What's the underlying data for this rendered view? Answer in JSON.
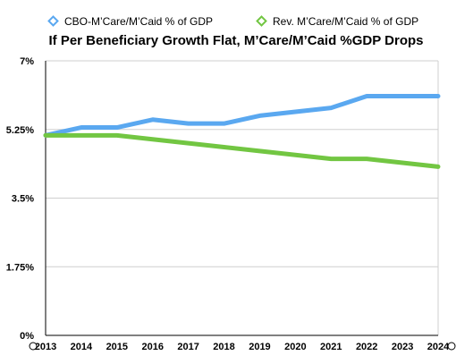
{
  "chart_data": {
    "type": "line",
    "title": "If Per Beneficiary Growth Flat, M’Care/M’Caid %GDP Drops",
    "xlabel": "",
    "ylabel": "",
    "categories": [
      "2013",
      "2014",
      "2015",
      "2016",
      "2017",
      "2018",
      "2019",
      "2020",
      "2021",
      "2022",
      "2023",
      "2024"
    ],
    "ylim": [
      0,
      7
    ],
    "y_ticks": [
      {
        "value": 0,
        "label": "0%"
      },
      {
        "value": 1.75,
        "label": "1.75%"
      },
      {
        "value": 3.5,
        "label": "3.5%"
      },
      {
        "value": 5.25,
        "label": "5.25%"
      },
      {
        "value": 7,
        "label": "7%"
      }
    ],
    "grid": true,
    "legend_position": "top",
    "series": [
      {
        "name": "CBO-M’Care/M’Caid % of GDP",
        "color": "#5aa8f0",
        "values": [
          5.1,
          5.3,
          5.3,
          5.5,
          5.4,
          5.4,
          5.6,
          5.7,
          5.8,
          6.1,
          6.1,
          6.1
        ]
      },
      {
        "name": "Rev. M’Care/M’Caid % of GDP",
        "color": "#72c642",
        "values": [
          5.1,
          5.1,
          5.1,
          5.0,
          4.9,
          4.8,
          4.7,
          4.6,
          4.5,
          4.5,
          4.4,
          4.3
        ]
      }
    ]
  }
}
